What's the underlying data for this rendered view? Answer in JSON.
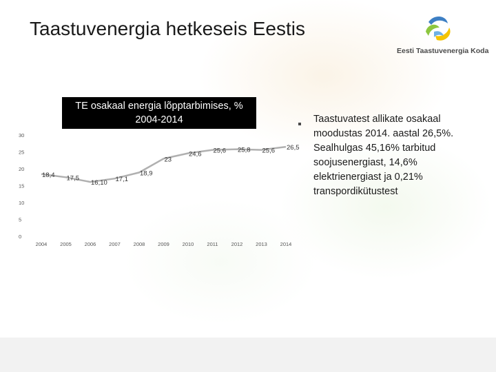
{
  "slide": {
    "title": "Taastuvenergia hetkeseis Eestis",
    "logo_text": "Eesti Taastuvenergia Koda",
    "side_text": "Taastuvatest allikate osakaal moodustas 2014. aastal 26,5%. Sealhulgas 45,16% tarbitud soojusenergiast, 14,6% elektrienergiast ja 0,21% transpordikütustest"
  },
  "colors": {
    "line": "#b0b0b0",
    "title_box_bg": "#000000",
    "title_box_text": "#ffffff",
    "footer": "#f2f2f2",
    "logo_blue": "#3d7fc4",
    "logo_green": "#8dc63f",
    "logo_yellow": "#f5c400"
  },
  "chart_data": {
    "type": "line",
    "title": "TE osakaal energia lõpptarbimises, % 2004-2014",
    "xlabel": "",
    "ylabel": "",
    "categories": [
      "2004",
      "2005",
      "2006",
      "2007",
      "2008",
      "2009",
      "2010",
      "2011",
      "2012",
      "2013",
      "2014"
    ],
    "series": [
      {
        "values": [
          18.4,
          17.5,
          16.1,
          17.1,
          18.9,
          23,
          24.6,
          25.6,
          25.8,
          25.6,
          26.5
        ],
        "labels": [
          "18,4",
          "17,5",
          "16,10",
          "17,1",
          "18,9",
          "23",
          "24,6",
          "25,6",
          "25,8",
          "25,6",
          "26,5"
        ]
      }
    ],
    "yticks": [
      "0",
      "5",
      "10",
      "15",
      "20",
      "25",
      "30"
    ],
    "ylim": [
      0,
      30
    ],
    "grid": false,
    "legend": "none"
  }
}
